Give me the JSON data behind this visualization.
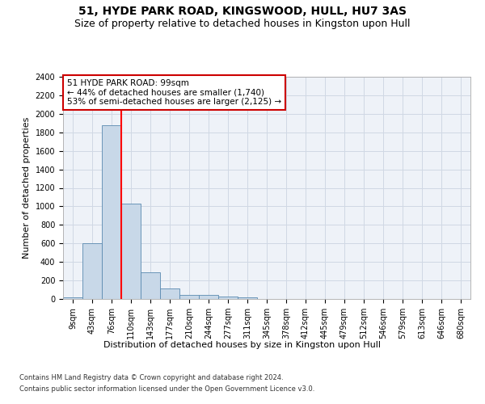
{
  "title": "51, HYDE PARK ROAD, KINGSWOOD, HULL, HU7 3AS",
  "subtitle": "Size of property relative to detached houses in Kingston upon Hull",
  "xlabel_bottom": "Distribution of detached houses by size in Kingston upon Hull",
  "ylabel": "Number of detached properties",
  "footnote1": "Contains HM Land Registry data © Crown copyright and database right 2024.",
  "footnote2": "Contains public sector information licensed under the Open Government Licence v3.0.",
  "bin_labels": [
    "9sqm",
    "43sqm",
    "76sqm",
    "110sqm",
    "143sqm",
    "177sqm",
    "210sqm",
    "244sqm",
    "277sqm",
    "311sqm",
    "345sqm",
    "378sqm",
    "412sqm",
    "445sqm",
    "479sqm",
    "512sqm",
    "546sqm",
    "579sqm",
    "613sqm",
    "646sqm",
    "680sqm"
  ],
  "bar_values": [
    20,
    600,
    1880,
    1030,
    285,
    115,
    48,
    42,
    28,
    20,
    0,
    0,
    0,
    0,
    0,
    0,
    0,
    0,
    0,
    0,
    0
  ],
  "bar_color": "#c8d8e8",
  "bar_edge_color": "#5a8ab0",
  "red_line_x": 2.5,
  "annotation_text": "51 HYDE PARK ROAD: 99sqm\n← 44% of detached houses are smaller (1,740)\n53% of semi-detached houses are larger (2,125) →",
  "annotation_box_color": "#cc0000",
  "ylim": [
    0,
    2400
  ],
  "yticks": [
    0,
    200,
    400,
    600,
    800,
    1000,
    1200,
    1400,
    1600,
    1800,
    2000,
    2200,
    2400
  ],
  "grid_color": "#d0d8e4",
  "bg_color": "#eef2f8",
  "title_fontsize": 10,
  "subtitle_fontsize": 9,
  "footnote_fontsize": 6,
  "ylabel_fontsize": 8,
  "xlabel_bottom_fontsize": 8,
  "tick_fontsize": 7
}
